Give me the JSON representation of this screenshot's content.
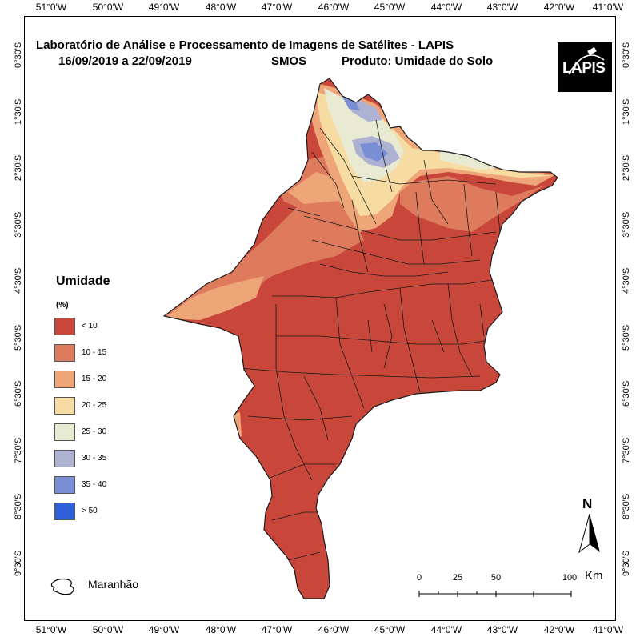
{
  "title": {
    "line1": "Laboratório de Análise e Processamento de Imagens de Satélites - LAPIS",
    "dates": "16/09/2019  a  22/09/2019",
    "sensor": "SMOS",
    "product": "Produto: Umidade do Solo"
  },
  "logo": {
    "text": "LAPIS"
  },
  "axes": {
    "longitude_ticks": [
      "51°0'W",
      "50°0'W",
      "49°0'W",
      "48°0'W",
      "47°0'W",
      "46°0'W",
      "45°0'W",
      "44°0'W",
      "43°0'W",
      "42°0'W",
      "41°0'W"
    ],
    "latitude_ticks": [
      "0°30'S",
      "1°30'S",
      "2°30'S",
      "3°30'S",
      "4°30'S",
      "5°30'S",
      "6°30'S",
      "7°30'S",
      "8°30'S",
      "9°30'S"
    ]
  },
  "legend": {
    "title": "Umidade",
    "unit": "(%)",
    "items": [
      {
        "label": "< 10",
        "color": "#c8473a"
      },
      {
        "label": "10 - 15",
        "color": "#df7b5d"
      },
      {
        "label": "15 - 20",
        "color": "#eea679"
      },
      {
        "label": "20 - 25",
        "color": "#f6dca2"
      },
      {
        "label": "25 - 30",
        "color": "#e8ebd2"
      },
      {
        "label": "30 - 35",
        "color": "#aeb2d2"
      },
      {
        "label": "35 - 40",
        "color": "#7a8ed6"
      },
      {
        "label": "> 50",
        "color": "#2f5fd9"
      }
    ],
    "boundary_label": "Maranhão"
  },
  "scale_bar": {
    "labels": [
      "0",
      "25",
      "50",
      "100"
    ],
    "unit": "Km"
  },
  "north_arrow": {
    "label": "N"
  },
  "colors": {
    "dry": "#c8473a",
    "border": "#1a1a1a"
  }
}
